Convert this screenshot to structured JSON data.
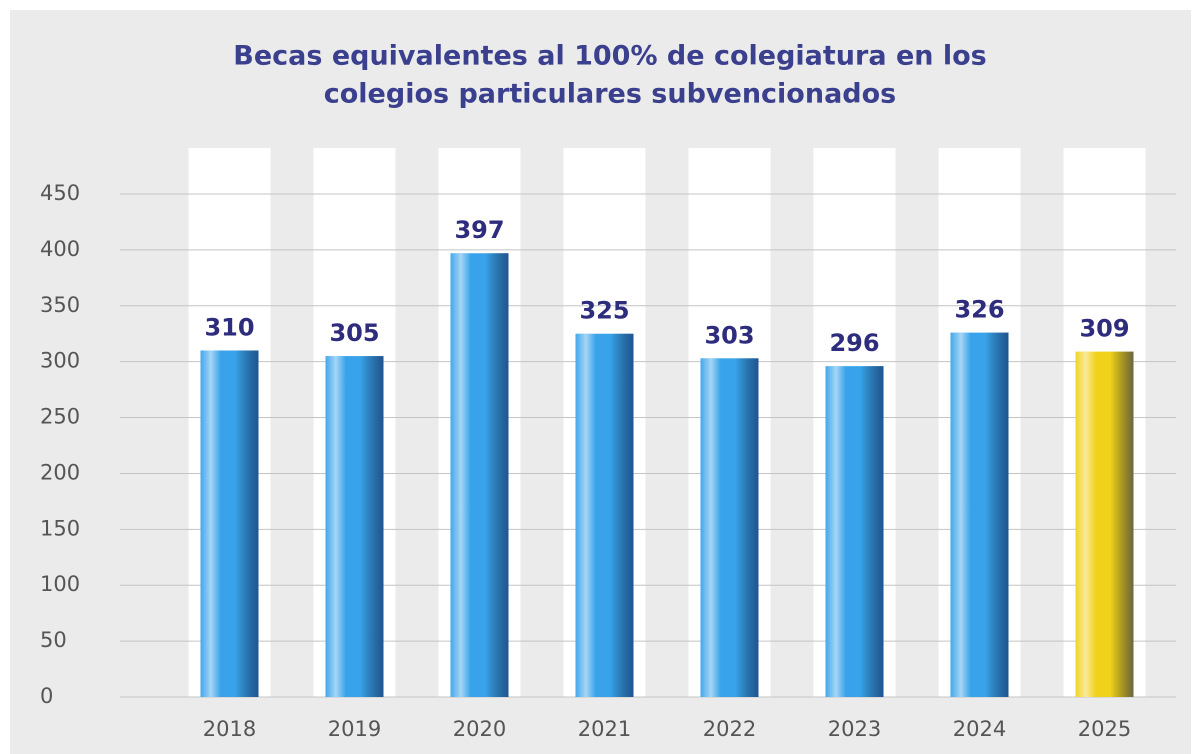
{
  "chart_data": {
    "type": "bar",
    "title": [
      "Becas equivalentes al 100% de colegiatura en los",
      "colegios particulares subvencionados"
    ],
    "categories": [
      "2018",
      "2019",
      "2020",
      "2021",
      "2022",
      "2023",
      "2024",
      "2025"
    ],
    "values": [
      310,
      305,
      397,
      325,
      303,
      296,
      326,
      309
    ],
    "colors": [
      "#38a3ea",
      "#38a3ea",
      "#38a3ea",
      "#38a3ea",
      "#38a3ea",
      "#38a3ea",
      "#38a3ea",
      "#f0d21c"
    ],
    "ylim": [
      0,
      450
    ],
    "yticks": [
      0,
      50,
      100,
      150,
      200,
      250,
      300,
      350,
      400,
      450
    ],
    "grid": true
  }
}
